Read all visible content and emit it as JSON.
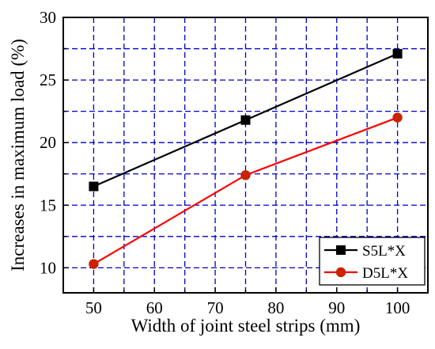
{
  "chart_data": {
    "type": "line",
    "xlabel": "Width of joint steel strips (mm)",
    "ylabel": "Increases in maximum load (%)",
    "xlim": [
      45,
      105
    ],
    "ylim": [
      8,
      30
    ],
    "xticks": [
      50,
      60,
      70,
      80,
      90,
      100
    ],
    "yticks": [
      10,
      15,
      20,
      25,
      30
    ],
    "grid": true,
    "grid_color": "#0000cc",
    "legend_position": "bottom-right",
    "series": [
      {
        "name": "S5L*X",
        "color": "#000000",
        "marker": "square",
        "x": [
          50,
          75,
          100
        ],
        "y": [
          16.5,
          21.8,
          27.1
        ]
      },
      {
        "name": "D5L*X",
        "color": "#ff0000",
        "marker": "circle",
        "marker_color": "#cc2200",
        "x": [
          50,
          75,
          100
        ],
        "y": [
          10.3,
          17.4,
          22.0
        ]
      }
    ]
  }
}
